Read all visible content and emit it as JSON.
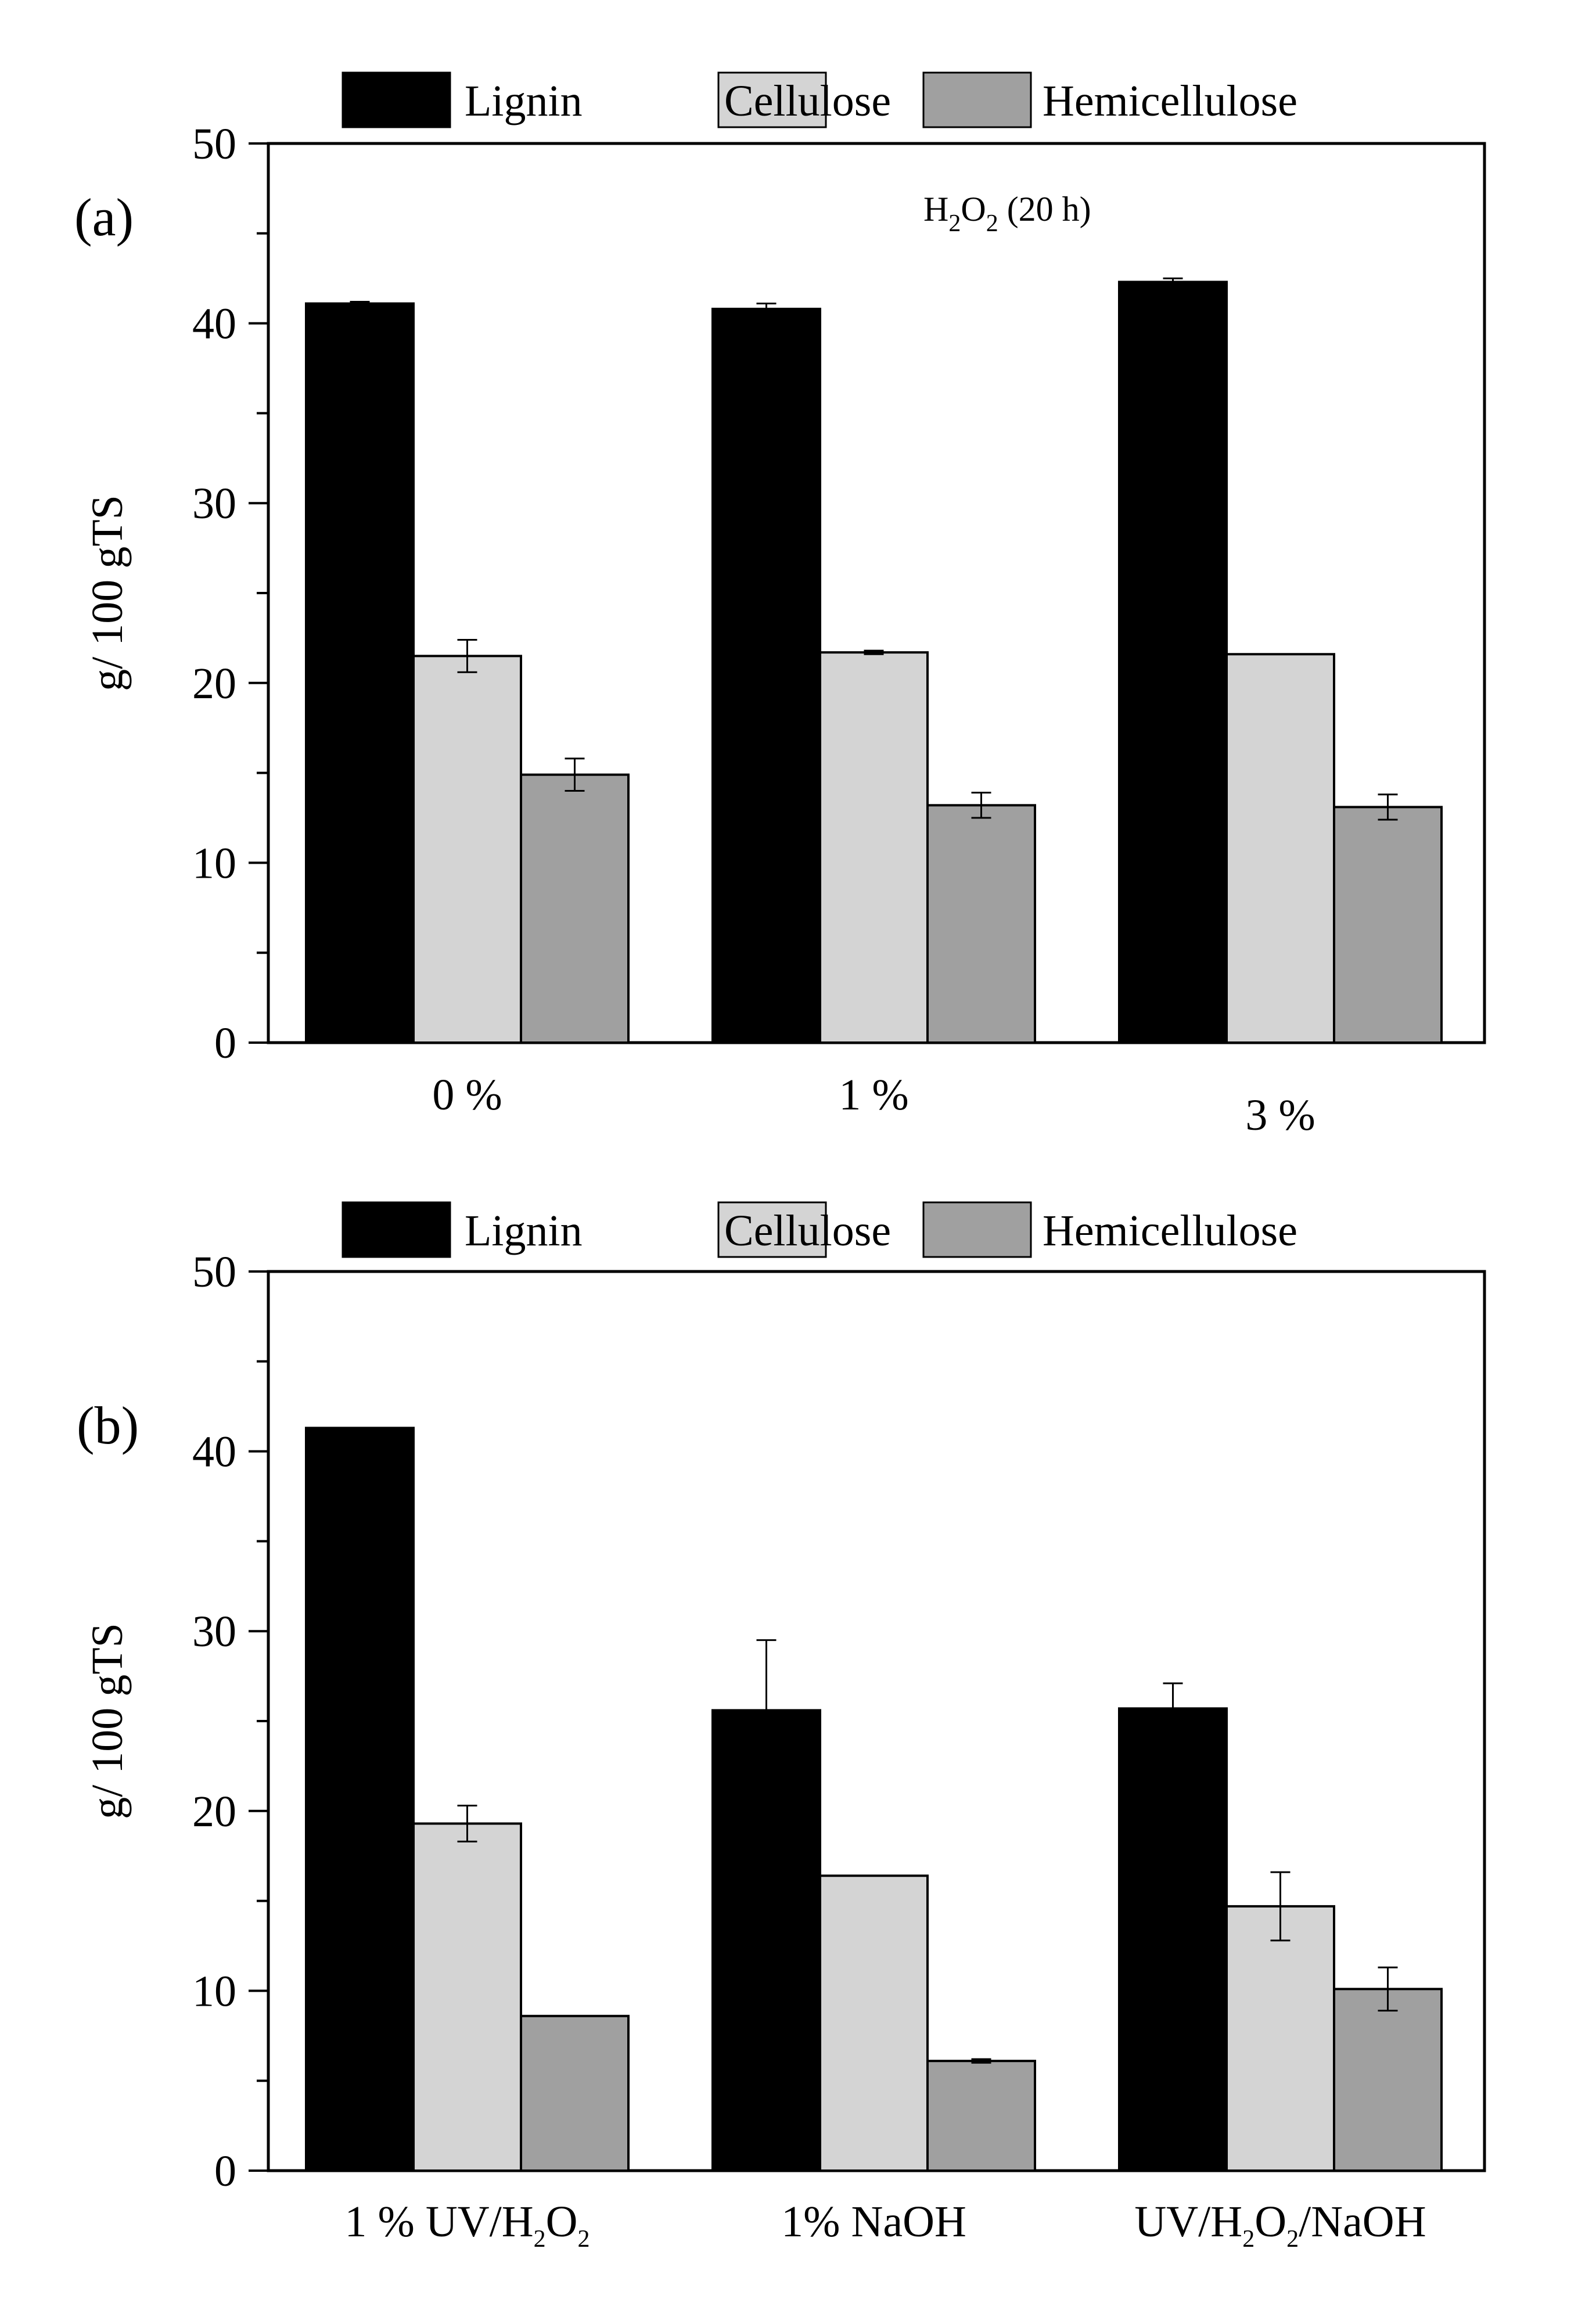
{
  "chart_data": [
    {
      "type": "bar",
      "panel_label": "(a)",
      "annotation": "H2O2 (20 h)",
      "annotation_parts": [
        "H",
        "2",
        "O",
        "2",
        "  (20 h)"
      ],
      "categories": [
        "0 %",
        "1 %",
        "3 %"
      ],
      "category_parts": [
        [
          "0 %"
        ],
        [
          "1 %"
        ],
        [
          "3 %"
        ]
      ],
      "series": [
        {
          "name": "Lignin",
          "color": "#000000",
          "values": [
            41.1,
            40.8,
            42.3
          ],
          "errors": [
            0.1,
            0.3,
            0.2
          ]
        },
        {
          "name": "Cellulose",
          "color": "#d4d4d4",
          "values": [
            21.5,
            21.7,
            21.6
          ],
          "errors": [
            0.9,
            0.1,
            0.0
          ]
        },
        {
          "name": "Hemicellulose",
          "color": "#a0a0a0",
          "values": [
            14.9,
            13.2,
            13.1
          ],
          "errors": [
            0.9,
            0.7,
            0.7
          ]
        }
      ],
      "ylabel": "g/ 100 gTS",
      "ylim": [
        0,
        50
      ],
      "yticks": [
        0,
        10,
        20,
        30,
        40,
        50
      ],
      "legend": [
        "Lignin",
        "Cellulose",
        "Hemicellulose"
      ],
      "legend_position": "top"
    },
    {
      "type": "bar",
      "panel_label": "(b)",
      "categories": [
        "1 %  UV/H2O2",
        "1% NaOH",
        "UV/H2O2/NaOH"
      ],
      "category_parts": [
        [
          "1 %  UV/H",
          "2",
          "O",
          "2"
        ],
        [
          "1% NaOH"
        ],
        [
          "UV/H",
          "2",
          "O",
          "2",
          "/NaOH"
        ]
      ],
      "series": [
        {
          "name": "Lignin",
          "color": "#000000",
          "values": [
            41.3,
            25.6,
            25.7
          ],
          "errors": [
            0.0,
            3.9,
            1.4
          ]
        },
        {
          "name": "Cellulose",
          "color": "#d4d4d4",
          "values": [
            19.3,
            16.4,
            14.7
          ],
          "errors": [
            1.0,
            0.0,
            1.9
          ]
        },
        {
          "name": "Hemicellulose",
          "color": "#a0a0a0",
          "values": [
            8.6,
            6.1,
            10.1
          ],
          "errors": [
            0.0,
            0.1,
            1.2
          ]
        }
      ],
      "ylabel": "g/ 100 gTS",
      "ylim": [
        0,
        50
      ],
      "yticks": [
        0,
        10,
        20,
        30,
        40,
        50
      ],
      "legend": [
        "Lignin",
        "Cellulose",
        "Hemicellulose"
      ],
      "legend_position": "top"
    }
  ]
}
